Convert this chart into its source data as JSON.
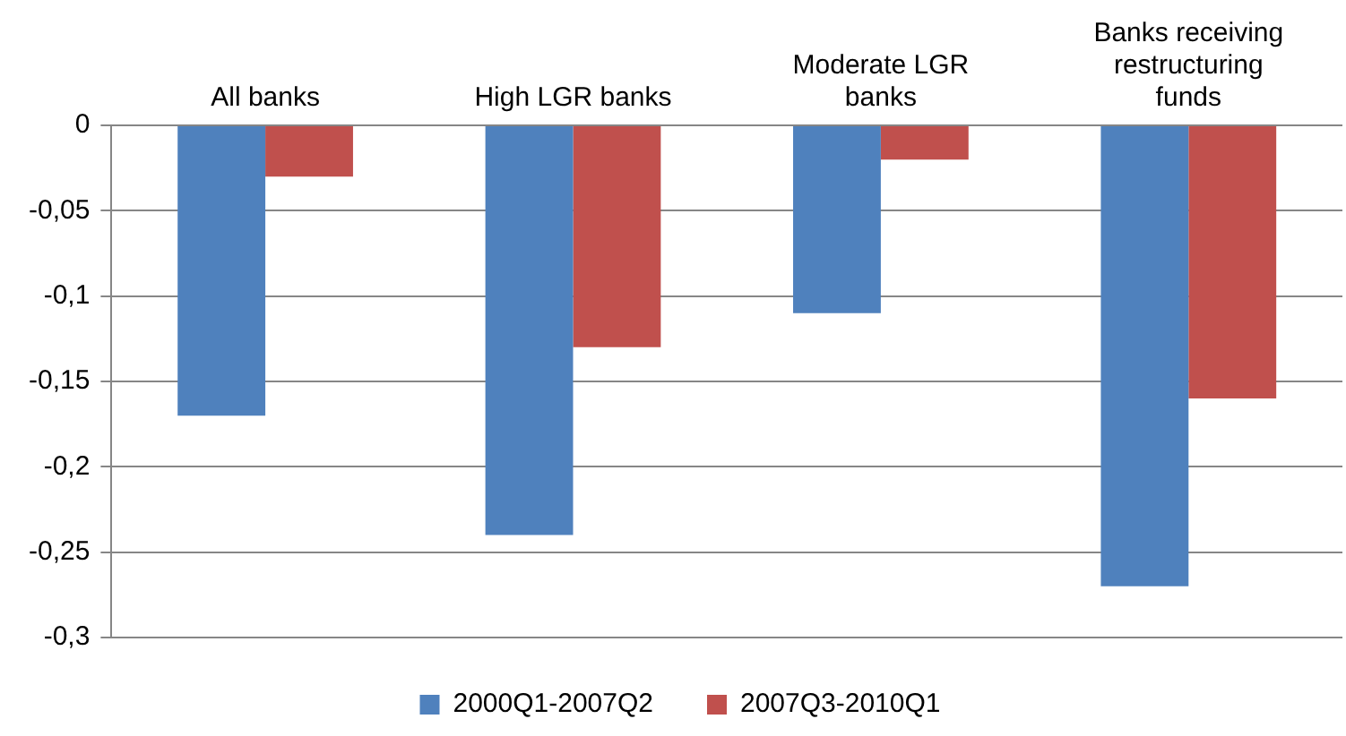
{
  "chart_data": {
    "type": "bar",
    "categories": [
      "All banks",
      "High LGR banks",
      "Moderate LGR banks",
      "Banks receiving restructuring funds"
    ],
    "series": [
      {
        "name": "2000Q1-2007Q2",
        "color": "#4f81bd",
        "values": [
          -0.17,
          -0.24,
          -0.11,
          -0.27
        ]
      },
      {
        "name": "2007Q3-2010Q1",
        "color": "#c0504d",
        "values": [
          -0.03,
          -0.13,
          -0.02,
          -0.16
        ]
      }
    ],
    "ylim": [
      -0.3,
      0
    ],
    "yticks": [
      0,
      {
        "value": -0.05,
        "label": "-0,05"
      },
      {
        "value": -0.1,
        "label": "-0,1"
      },
      {
        "value": -0.15,
        "label": "-0,15"
      },
      {
        "value": -0.2,
        "label": "-0,2"
      },
      {
        "value": -0.25,
        "label": "-0,25"
      },
      {
        "value": -0.3,
        "label": "-0,3"
      }
    ],
    "grid": "y",
    "legend": "bottom"
  }
}
